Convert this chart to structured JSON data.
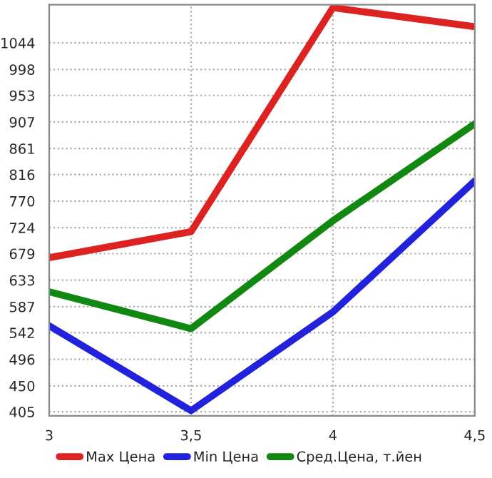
{
  "chart_data": {
    "type": "line",
    "x": [
      3,
      3.5,
      4,
      4.5
    ],
    "series": [
      {
        "name": "Max Цена",
        "color": "#dd2222",
        "values": [
          672,
          717,
          1105,
          1072
        ]
      },
      {
        "name": "Min Цена",
        "color": "#2222dd",
        "values": [
          554,
          407,
          578,
          805
        ]
      },
      {
        "name": "Сред.Цена, т.йен",
        "color": "#118811",
        "values": [
          613,
          549,
          736,
          904
        ]
      }
    ],
    "xlim": [
      3,
      4.5
    ],
    "xticks": [
      3,
      {
        "value": 3.5,
        "label": "3,5"
      },
      4,
      {
        "value": 4.5,
        "label": "4,5"
      }
    ],
    "ylim": [
      398,
      1110
    ],
    "yticks": [
      405,
      450,
      496,
      542,
      587,
      633,
      679,
      724,
      770,
      816,
      861,
      907,
      953,
      998,
      1044
    ],
    "grid": true,
    "legend": "bottom",
    "marker": "none",
    "line_style": "solid"
  }
}
